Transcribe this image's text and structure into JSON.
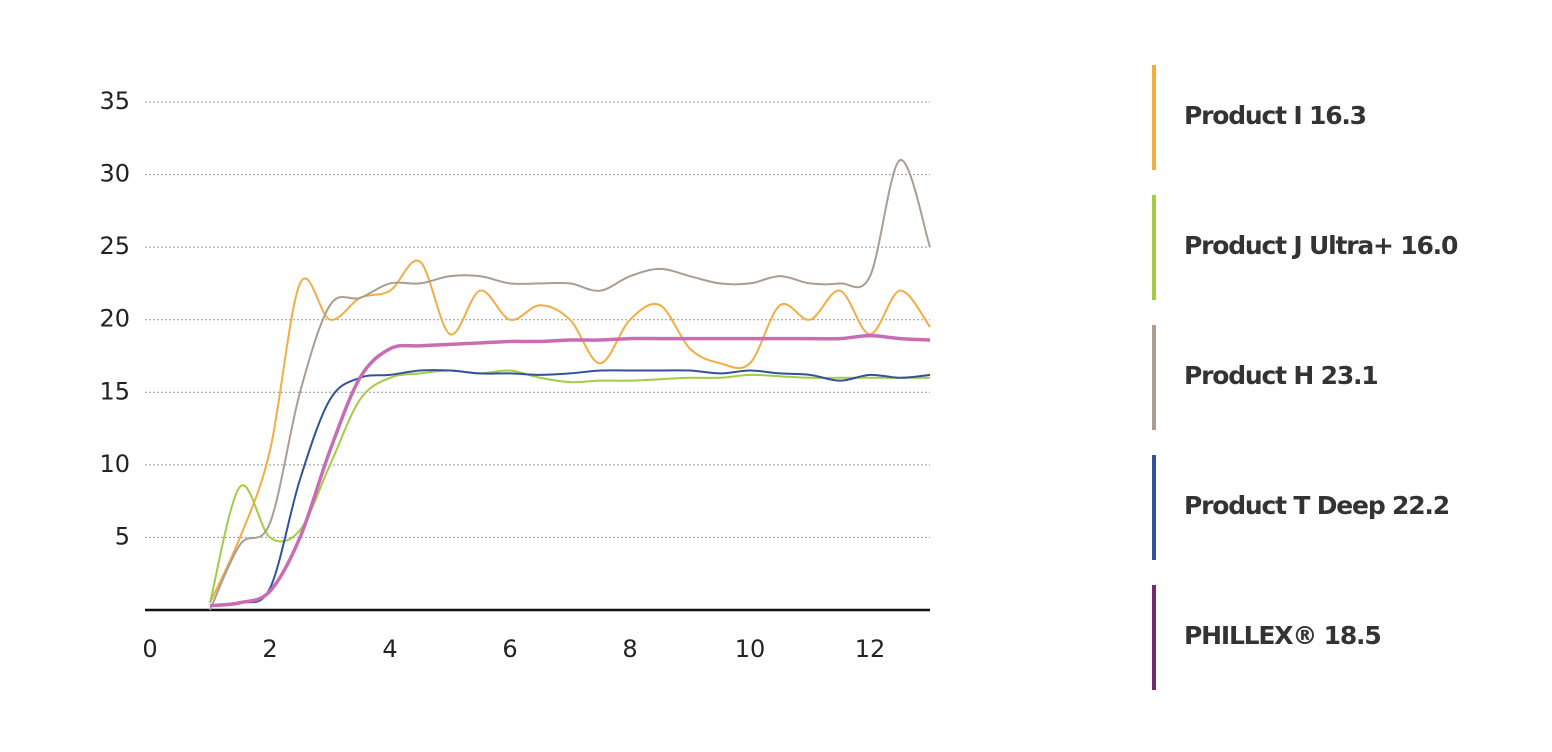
{
  "chart_data": {
    "type": "line",
    "x": [
      1,
      1.5,
      2,
      2.5,
      3,
      3.5,
      4,
      4.5,
      5,
      5.5,
      6,
      6.5,
      7,
      7.5,
      8,
      8.5,
      9,
      9.5,
      10,
      10.5,
      11,
      11.5,
      12,
      12.5,
      13
    ],
    "series": [
      {
        "name": "Product I 16.3",
        "color": "#f2ad45",
        "legend_color": "#f2ad45",
        "values": [
          0.5,
          5,
          11,
          22.5,
          20,
          21.5,
          22,
          24,
          19,
          22,
          20,
          21,
          20,
          17,
          20,
          21,
          18,
          17,
          17,
          21,
          20,
          22,
          19,
          22,
          19.5
        ]
      },
      {
        "name": "Product J Ultra+ 16.0",
        "color": "#a2cc44",
        "legend_color": "#a2cc44",
        "values": [
          0.5,
          8.5,
          5,
          5.5,
          10,
          14.5,
          16,
          16.3,
          16.5,
          16.3,
          16.5,
          16,
          15.7,
          15.8,
          15.8,
          15.9,
          16,
          16,
          16.2,
          16.1,
          16,
          16,
          16,
          16,
          16
        ]
      },
      {
        "name": "Product H 23.1",
        "color": "#ab9d92",
        "legend_color": "#ab9d92",
        "values": [
          0,
          4.5,
          6,
          15,
          21,
          21.5,
          22.5,
          22.5,
          23,
          23,
          22.5,
          22.5,
          22.5,
          22,
          23,
          23.5,
          23,
          22.5,
          22.5,
          23,
          22.5,
          22.5,
          23,
          31,
          25
        ]
      },
      {
        "name": "Product T Deep 22.2",
        "color": "#34519b",
        "legend_color": "#34519b",
        "values": [
          0.3,
          0.5,
          1.5,
          9,
          14.5,
          16,
          16.2,
          16.5,
          16.5,
          16.3,
          16.3,
          16.2,
          16.3,
          16.5,
          16.5,
          16.5,
          16.5,
          16.3,
          16.5,
          16.3,
          16.2,
          15.8,
          16.2,
          16,
          16.2
        ]
      },
      {
        "name": "PHILLEX® 18.5",
        "color": "#c86db3",
        "legend_color": "#6f2d6f",
        "values": [
          0.3,
          0.5,
          1.3,
          5,
          11,
          16,
          18,
          18.2,
          18.3,
          18.4,
          18.5,
          18.5,
          18.6,
          18.6,
          18.7,
          18.7,
          18.7,
          18.7,
          18.7,
          18.7,
          18.7,
          18.7,
          18.9,
          18.7,
          18.6
        ]
      }
    ],
    "xlim": [
      0,
      13
    ],
    "xticks": [
      0,
      2,
      4,
      6,
      8,
      10,
      12
    ],
    "ylim": [
      0,
      35
    ],
    "yticks": [
      5,
      10,
      15,
      20,
      25,
      30,
      35
    ],
    "grid": true
  }
}
